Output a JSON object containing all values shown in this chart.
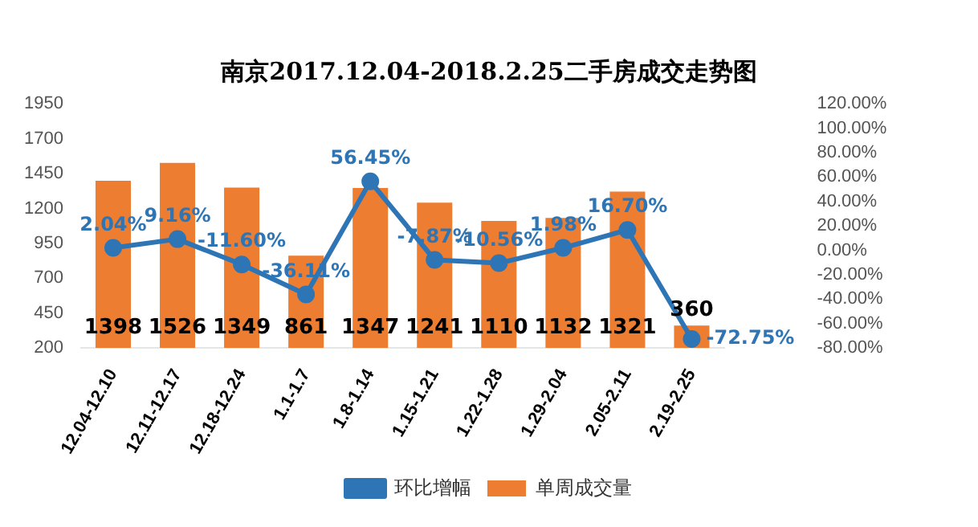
{
  "chart_data": {
    "type": "bar",
    "title": "南京2017.12.04-2018.2.25二手房成交走势图",
    "categories": [
      "12.04-12.10",
      "12.11-12.17",
      "12.18-12.24",
      "1.1-1.7",
      "1.8-1.14",
      "1.15-1.21",
      "1.22-1.28",
      "1.29-2.04",
      "2.05-2.11",
      "2.19-2.25"
    ],
    "series": [
      {
        "name": "单周成交量",
        "color": "#ed7d31",
        "values": [
          1398,
          1526,
          1349,
          861,
          1347,
          1241,
          1110,
          1132,
          1321,
          360
        ],
        "value_labels": [
          "1398",
          "1526",
          "1349",
          "861",
          "1347",
          "1241",
          "1110",
          "1132",
          "1321",
          "360"
        ]
      },
      {
        "name": "环比增幅",
        "type": "line",
        "axis": "y2",
        "color": "#2e75b6",
        "marker": "circle",
        "values": [
          2.04,
          9.16,
          -11.6,
          -36.11,
          56.45,
          -7.87,
          -10.56,
          1.98,
          16.7,
          -72.75
        ],
        "value_labels": [
          "2.04%",
          "9.16%",
          "-11.60%",
          "-36.11%",
          "56.45%",
          "-7.87%",
          "-10.56%",
          "1.98%",
          "16.70%",
          "-72.75%"
        ]
      }
    ],
    "ylim": [
      200,
      1950
    ],
    "yticks": [
      200,
      450,
      700,
      950,
      1200,
      1450,
      1700,
      1950
    ],
    "y2lim": [
      -80,
      120
    ],
    "y2ticks": [
      {
        "value": -80,
        "label": "-80.00%"
      },
      {
        "value": -60,
        "label": "-60.00%"
      },
      {
        "value": -40,
        "label": "-40.00%"
      },
      {
        "value": -20,
        "label": "-20.00%"
      },
      {
        "value": 0,
        "label": "0.00%"
      },
      {
        "value": 20,
        "label": "20.00%"
      },
      {
        "value": 40,
        "label": "40.00%"
      },
      {
        "value": 60,
        "label": "60.00%"
      },
      {
        "value": 80,
        "label": "80.00%"
      },
      {
        "value": 100,
        "label": "100.00%"
      },
      {
        "value": 120,
        "label": "120.00%"
      }
    ],
    "grid": false,
    "legend": "bottom"
  }
}
